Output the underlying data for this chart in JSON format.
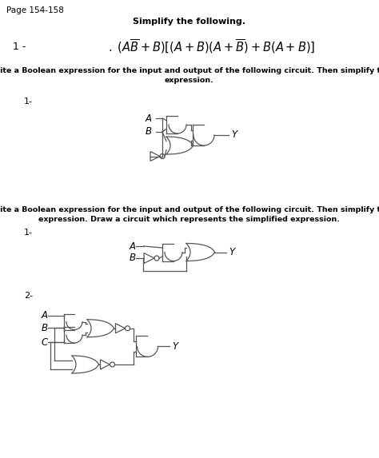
{
  "page_header": "Page 154-158",
  "simplify_title": "Simplify the following.",
  "problem1_label": "1 -",
  "section2_line1": "Write a Boolean expression for the input and output of the following circuit. Then simplify the",
  "section2_line2": "expression.",
  "section3_line1": "Write a Boolean expression for the input and output of the following circuit. Then simplify the",
  "section3_line2": "expression. Draw a circuit which represents the simplified expression.",
  "label_1a": "1-",
  "label_1b": "1-",
  "label_2": "2-",
  "bg_color": "#ffffff",
  "lc": "#555555",
  "tc": "#000000",
  "lw": 0.9
}
